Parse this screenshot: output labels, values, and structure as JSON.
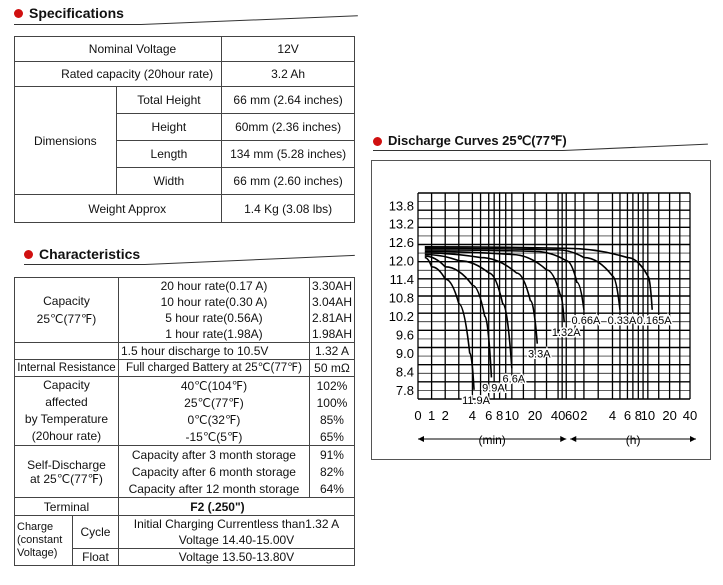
{
  "specifications": {
    "title": "Specifications",
    "rows": {
      "nominal_voltage": {
        "label": "Nominal Voltage",
        "value": "12V"
      },
      "rated_capacity": {
        "label": "Rated capacity (20hour rate)",
        "value": "3.2 Ah"
      },
      "dimensions": {
        "label": "Dimensions",
        "total_height": {
          "label": "Total Height",
          "value": "66 mm (2.64 inches)"
        },
        "height": {
          "label": "Height",
          "value": "60mm (2.36 inches)"
        },
        "length": {
          "label": "Length",
          "value": "134 mm (5.28 inches)"
        },
        "width": {
          "label": "Width",
          "value": "66 mm (2.60 inches)"
        }
      },
      "weight": {
        "label": "Weight Approx",
        "value": "1.4 Kg (3.08 lbs)"
      }
    }
  },
  "characteristics": {
    "title": "Characteristics",
    "capacity": {
      "label1": "Capacity",
      "label2": "25℃(77℉)",
      "rows": [
        {
          "label": "20 hour rate(0.17 A)",
          "value": "3.30AH"
        },
        {
          "label": "10 hour rate(0.30 A)",
          "value": "3.04AH"
        },
        {
          "label": "5 hour rate(0.56A)",
          "value": "2.81AH"
        },
        {
          "label": "1 hour rate(1.98A)",
          "value": "1.98AH"
        }
      ],
      "discharge": {
        "label": "1.5 hour discharge to 10.5V",
        "value": "1.32 A"
      }
    },
    "internal_resistance": {
      "label": "Internal Resistance",
      "condition": "Full charged Battery at 25℃(77℉)",
      "value": "50 mΩ"
    },
    "temperature": {
      "label1": "Capacity",
      "label2": "affected",
      "label3": "by Temperature",
      "label4": "(20hour rate)",
      "rows": [
        {
          "label": "40℃(104℉)",
          "value": "102%"
        },
        {
          "label": "25℃(77℉)",
          "value": "100%"
        },
        {
          "label": "0℃(32℉)",
          "value": "85%"
        },
        {
          "label": "-15℃(5℉)",
          "value": "65%"
        }
      ]
    },
    "self_discharge": {
      "label1": "Self-Discharge",
      "label2": "at 25℃(77℉)",
      "rows": [
        {
          "label": "Capacity after 3 month storage",
          "value": "91%"
        },
        {
          "label": "Capacity after 6 month storage",
          "value": "82%"
        },
        {
          "label": "Capacity after 12 month storage",
          "value": "64%"
        }
      ]
    },
    "terminal": {
      "label": "Terminal",
      "value": "F2 (.250\")"
    },
    "charge": {
      "label1": "Charge",
      "label2": "(constant",
      "label3": "Voltage)",
      "cycle": {
        "label": "Cycle",
        "line1": "Initial Charging Currentless than1.32 A",
        "line2": "Voltage 14.40-15.00V"
      },
      "float": {
        "label": "Float",
        "line1": "Voltage 13.50-13.80V"
      }
    }
  },
  "discharge_curves": {
    "title": "Discharge Curves 25℃(77℉)",
    "chart_data": {
      "type": "line",
      "title": "Discharge Curves 25℃(77℉)",
      "y_ticks": [
        "13.8",
        "13.2",
        "12.6",
        "12.0",
        "11.4",
        "10.8",
        "10.2",
        "9.6",
        "9.0",
        "8.4",
        "7.8"
      ],
      "ylim": [
        7.5,
        14.2
      ],
      "x_ticks_min": [
        "0",
        "1",
        "2",
        "4",
        "6",
        "8",
        "10",
        "20",
        "40"
      ],
      "x_ticks_h": [
        "60",
        "2",
        "4",
        "6",
        "8",
        "10",
        "20",
        "40"
      ],
      "x_unit_min": "(min)",
      "x_unit_h": "(h)",
      "grid": true,
      "series": [
        {
          "label": "11.9A",
          "points": [
            [
              0.5,
              12.1
            ],
            [
              1,
              11.8
            ],
            [
              2,
              11.4
            ],
            [
              3,
              10.6
            ],
            [
              3.8,
              9.0
            ],
            [
              4.2,
              7.8
            ]
          ]
        },
        {
          "label": "9.9A",
          "points": [
            [
              0.5,
              12.15
            ],
            [
              2,
              11.8
            ],
            [
              4,
              11.2
            ],
            [
              5.5,
              10.2
            ],
            [
              6.5,
              8.2
            ]
          ]
        },
        {
          "label": "6.6A",
          "points": [
            [
              0.5,
              12.2
            ],
            [
              3,
              12.0
            ],
            [
              6,
              11.6
            ],
            [
              8.5,
              10.6
            ],
            [
              10,
              8.5
            ]
          ]
        },
        {
          "label": "3.3A",
          "points": [
            [
              0.5,
              12.25
            ],
            [
              5,
              12.1
            ],
            [
              12,
              11.6
            ],
            [
              18,
              10.7
            ],
            [
              22,
              9.3
            ]
          ]
        },
        {
          "label": "1.32A",
          "points": [
            [
              0.5,
              12.3
            ],
            [
              10,
              12.2
            ],
            [
              30,
              11.7
            ],
            [
              45,
              10.9
            ],
            [
              55,
              10.0
            ]
          ]
        },
        {
          "label": "0.66A",
          "points": [
            [
              0.5,
              12.35
            ],
            [
              20,
              12.3
            ],
            [
              60,
              12.0
            ],
            [
              1.6,
              11.3
            ],
            [
              2.0,
              10.4
            ]
          ]
        },
        {
          "label": "0.33A",
          "points": [
            [
              0.5,
              12.4
            ],
            [
              40,
              12.35
            ],
            [
              2,
              12.1
            ],
            [
              4,
              11.5
            ],
            [
              5,
              10.4
            ]
          ]
        },
        {
          "label": "0.165A",
          "points": [
            [
              0.5,
              12.45
            ],
            [
              60,
              12.4
            ],
            [
              6,
              12.1
            ],
            [
              10,
              11.5
            ],
            [
              12,
              10.4
            ]
          ]
        }
      ]
    }
  }
}
